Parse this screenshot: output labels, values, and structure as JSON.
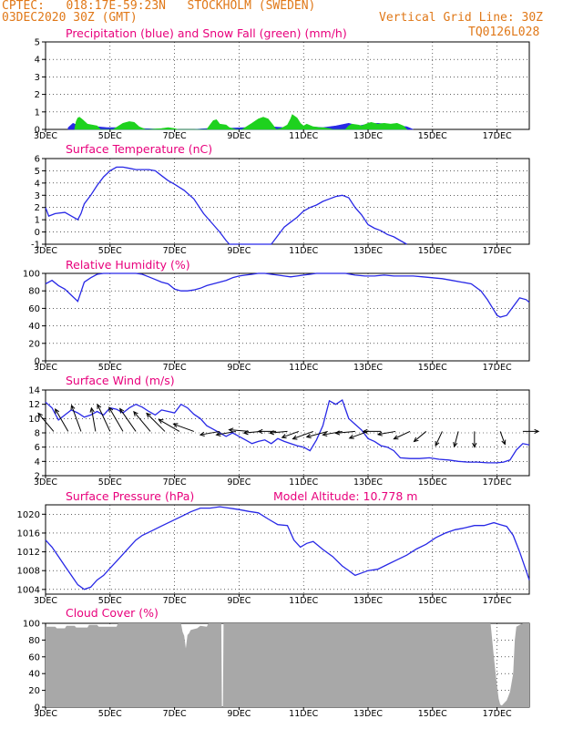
{
  "header": {
    "line1": "CPTEC:   018:17E-59:23N   STOCKHOLM (SWEDEN)",
    "line2": "03DEC2020 30Z (GMT)",
    "grid_note": "Vertical Grid Line: 30Z",
    "code": "TQ0126L028"
  },
  "colors": {
    "header": "#e07818",
    "title": "#e8007c",
    "line": "#2828e6",
    "snow": "#1ed21e",
    "cloud": "#a8a8a8",
    "wind_arrow": "#000000"
  },
  "x_axis": {
    "tick_labels": [
      "3DEC",
      "5DEC",
      "7DEC",
      "9DEC",
      "11DEC",
      "13DEC",
      "15DEC",
      "17DEC"
    ],
    "tick_days": [
      3,
      5,
      7,
      9,
      11,
      13,
      15,
      17
    ],
    "xlim": [
      3,
      18
    ]
  },
  "chart_data": [
    {
      "id": "precip",
      "type": "area",
      "title": "Precipitation (blue) and Snow Fall (green) (mm/h)",
      "yticks": [
        0,
        1,
        2,
        3,
        4,
        5
      ],
      "ylim": [
        0,
        5
      ],
      "series": [
        {
          "kind": "precip",
          "color": "#2828e6",
          "x": [
            3.7,
            3.85,
            4.05,
            4.3,
            4.6,
            4.9,
            5.2,
            5.5,
            5.8,
            6.0,
            6.4,
            6.8,
            7.2,
            7.6,
            8.0,
            8.4,
            8.8,
            9.2,
            9.6,
            10.0,
            10.4,
            10.8,
            11.2,
            11.6,
            12.0,
            12.4,
            12.7,
            13.0,
            13.3,
            13.6,
            13.9,
            14.2,
            14.4
          ],
          "y": [
            0.1,
            0.35,
            0.2,
            0.15,
            0.15,
            0.1,
            0.1,
            0.08,
            0.05,
            0.05,
            0.02,
            0.02,
            0.0,
            0.0,
            0.05,
            0.05,
            0.08,
            0.1,
            0.1,
            0.15,
            0.1,
            0.15,
            0.15,
            0.1,
            0.2,
            0.35,
            0.2,
            0.3,
            0.35,
            0.3,
            0.2,
            0.15,
            0.0
          ]
        },
        {
          "kind": "snow",
          "color": "#1ed21e",
          "x": [
            3.9,
            3.95,
            4.0,
            4.05,
            4.15,
            4.3,
            4.45,
            4.6,
            4.7,
            5.1,
            5.4,
            5.6,
            5.75,
            5.9,
            6.1,
            6.2,
            6.6,
            6.8,
            7.0,
            7.1,
            7.6,
            8.0,
            8.1,
            8.2,
            8.3,
            8.4,
            8.6,
            8.7,
            8.9,
            9.1,
            9.4,
            9.6,
            9.75,
            9.9,
            10.05,
            10.15,
            10.3,
            10.5,
            10.6,
            10.65,
            10.8,
            10.9,
            11.0,
            11.1,
            11.3,
            11.5,
            11.6,
            11.8,
            11.9,
            12.3,
            12.4,
            12.5,
            12.7,
            12.8,
            13.0,
            13.1,
            13.3,
            13.5,
            13.7,
            13.9,
            14.1,
            14.2
          ],
          "y": [
            0,
            0.45,
            0.65,
            0.7,
            0.55,
            0.3,
            0.25,
            0.2,
            0.0,
            0.0,
            0.35,
            0.45,
            0.4,
            0.15,
            0,
            0,
            0.05,
            0.1,
            0.05,
            0,
            0,
            0,
            0.25,
            0.5,
            0.55,
            0.3,
            0.25,
            0.1,
            0,
            0,
            0.35,
            0.6,
            0.7,
            0.6,
            0.25,
            0,
            0.05,
            0.25,
            0.6,
            0.85,
            0.65,
            0.35,
            0.2,
            0.3,
            0.15,
            0.1,
            0.1,
            0.05,
            0,
            0,
            0.2,
            0.3,
            0.25,
            0.2,
            0.35,
            0.4,
            0.3,
            0.35,
            0.3,
            0.35,
            0.2,
            0
          ]
        }
      ]
    },
    {
      "id": "temp",
      "type": "line",
      "title": "Surface Temperature (nC)",
      "yticks": [
        -1,
        0,
        1,
        2,
        3,
        4,
        5,
        6
      ],
      "ylim": [
        -1,
        6
      ],
      "series": [
        {
          "color": "#2828e6",
          "x": [
            3,
            3.1,
            3.3,
            3.6,
            3.8,
            4.0,
            4.1,
            4.2,
            4.4,
            4.6,
            4.8,
            5.0,
            5.2,
            5.4,
            5.6,
            5.8,
            6.0,
            6.2,
            6.4,
            6.6,
            6.8,
            7.0,
            7.3,
            7.6,
            7.9,
            8.2,
            8.4,
            8.6,
            8.7,
            10.0,
            10.2,
            10.4,
            10.6,
            10.8,
            11.0,
            11.2,
            11.4,
            11.6,
            11.8,
            12.0,
            12.2,
            12.4,
            12.6,
            12.8,
            13.0,
            13.2,
            13.4,
            13.6,
            13.8,
            14.0,
            14.2
          ],
          "y": [
            2.0,
            1.3,
            1.5,
            1.6,
            1.3,
            1.0,
            1.5,
            2.3,
            3.0,
            3.8,
            4.5,
            5.0,
            5.3,
            5.3,
            5.2,
            5.1,
            5.1,
            5.1,
            5.0,
            4.6,
            4.2,
            3.9,
            3.4,
            2.7,
            1.5,
            0.6,
            0.0,
            -0.7,
            -1.0,
            -1.0,
            -0.3,
            0.4,
            0.8,
            1.2,
            1.7,
            2.0,
            2.2,
            2.5,
            2.7,
            2.9,
            3.0,
            2.8,
            2.0,
            1.4,
            0.6,
            0.3,
            0.1,
            -0.2,
            -0.4,
            -0.7,
            -1.0
          ]
        }
      ]
    },
    {
      "id": "rh",
      "type": "line",
      "title": "Relative Humidity (%)",
      "yticks": [
        0,
        20,
        40,
        60,
        80,
        100
      ],
      "ylim": [
        0,
        100
      ],
      "series": [
        {
          "color": "#2828e6",
          "x": [
            3,
            3.2,
            3.4,
            3.6,
            3.8,
            4.0,
            4.2,
            4.4,
            4.6,
            4.8,
            5.0,
            5.2,
            5.4,
            5.6,
            5.8,
            6.0,
            6.2,
            6.4,
            6.6,
            6.8,
            7.0,
            7.2,
            7.4,
            7.6,
            7.8,
            8.0,
            8.2,
            8.4,
            8.6,
            8.8,
            9.0,
            9.2,
            9.4,
            9.6,
            9.8,
            10.0,
            10.2,
            10.4,
            10.6,
            10.8,
            11.0,
            11.2,
            11.4,
            11.6,
            11.8,
            12.0,
            12.3,
            12.6,
            12.9,
            13.2,
            13.5,
            13.8,
            14.1,
            14.4,
            14.7,
            15.0,
            15.3,
            15.6,
            15.9,
            16.2,
            16.5,
            16.7,
            16.9,
            17.0,
            17.1,
            17.3,
            17.5,
            17.7,
            17.9,
            18.0
          ],
          "y": [
            88,
            92,
            86,
            82,
            75,
            68,
            90,
            95,
            99,
            100,
            100,
            100,
            100,
            100,
            100,
            99,
            96,
            93,
            90,
            88,
            82,
            80,
            80,
            81,
            83,
            86,
            88,
            90,
            92,
            95,
            97,
            98,
            99,
            100,
            100,
            99,
            98,
            97,
            96,
            97,
            98,
            99,
            100,
            100,
            100,
            100,
            100,
            98,
            97,
            97,
            98,
            97,
            97,
            97,
            96,
            95,
            94,
            92,
            90,
            88,
            80,
            70,
            58,
            52,
            50,
            52,
            62,
            72,
            70,
            67
          ]
        }
      ]
    },
    {
      "id": "wind",
      "type": "line",
      "title": "Surface Wind (m/s)",
      "yticks": [
        2,
        4,
        6,
        8,
        10,
        12,
        14
      ],
      "ylim": [
        2,
        14
      ],
      "series": [
        {
          "color": "#2828e6",
          "x": [
            3,
            3.2,
            3.4,
            3.6,
            3.8,
            4.0,
            4.2,
            4.4,
            4.6,
            4.8,
            5.0,
            5.2,
            5.4,
            5.6,
            5.8,
            6.0,
            6.2,
            6.4,
            6.6,
            6.8,
            7.0,
            7.2,
            7.4,
            7.6,
            7.8,
            8.0,
            8.2,
            8.4,
            8.6,
            8.8,
            9.0,
            9.2,
            9.4,
            9.6,
            9.8,
            10.0,
            10.2,
            10.4,
            10.6,
            10.8,
            11.0,
            11.2,
            11.4,
            11.6,
            11.8,
            12.0,
            12.2,
            12.4,
            12.6,
            12.8,
            13.0,
            13.2,
            13.4,
            13.6,
            13.8,
            14.0,
            14.3,
            14.6,
            14.9,
            15.2,
            15.5,
            15.8,
            16.1,
            16.4,
            16.7,
            17.0,
            17.2,
            17.4,
            17.6,
            17.8,
            18.0
          ],
          "y": [
            12.3,
            11.5,
            9.8,
            10.5,
            11.2,
            10.8,
            10.2,
            10.5,
            11.0,
            10.5,
            11.5,
            11.3,
            10.8,
            11.5,
            12.0,
            11.6,
            11.0,
            10.5,
            11.2,
            11.0,
            10.8,
            12.0,
            11.5,
            10.6,
            10.0,
            9.0,
            8.5,
            8.0,
            7.5,
            8.0,
            7.5,
            7.0,
            6.5,
            6.8,
            7.0,
            6.5,
            7.2,
            6.8,
            6.5,
            6.2,
            6.0,
            5.5,
            7.0,
            9.0,
            12.5,
            12.0,
            12.6,
            10.0,
            9.2,
            8.4,
            7.2,
            6.8,
            6.2,
            6.0,
            5.5,
            4.5,
            4.4,
            4.4,
            4.5,
            4.3,
            4.2,
            4.0,
            3.9,
            3.9,
            3.8,
            3.8,
            3.9,
            4.2,
            5.6,
            6.5,
            6.3
          ]
        }
      ],
      "wind_barbs": [
        {
          "day": 3.25,
          "speed": 10,
          "dir": 320
        },
        {
          "day": 3.7,
          "speed": 11,
          "dir": 330
        },
        {
          "day": 4.1,
          "speed": 12,
          "dir": 340
        },
        {
          "day": 4.55,
          "speed": 10,
          "dir": 350
        },
        {
          "day": 5.0,
          "speed": 13,
          "dir": 335
        },
        {
          "day": 5.4,
          "speed": 12,
          "dir": 330
        },
        {
          "day": 5.8,
          "speed": 12,
          "dir": 325
        },
        {
          "day": 6.25,
          "speed": 11,
          "dir": 320
        },
        {
          "day": 6.7,
          "speed": 11,
          "dir": 315
        },
        {
          "day": 7.15,
          "speed": 10,
          "dir": 300
        },
        {
          "day": 7.6,
          "speed": 9,
          "dir": 290
        },
        {
          "day": 8.4,
          "speed": 8,
          "dir": 260
        },
        {
          "day": 8.9,
          "speed": 8,
          "dir": 260
        },
        {
          "day": 9.3,
          "speed": 8,
          "dir": 275
        },
        {
          "day": 9.7,
          "speed": 7,
          "dir": 265
        },
        {
          "day": 10.15,
          "speed": 7,
          "dir": 270
        },
        {
          "day": 10.5,
          "speed": 7,
          "dir": 265
        },
        {
          "day": 10.85,
          "speed": 7,
          "dir": 250
        },
        {
          "day": 11.3,
          "speed": 9,
          "dir": 250
        },
        {
          "day": 11.75,
          "speed": 9,
          "dir": 255
        },
        {
          "day": 12.2,
          "speed": 8,
          "dir": 260
        },
        {
          "day": 12.6,
          "speed": 8,
          "dir": 265
        },
        {
          "day": 13.0,
          "speed": 8,
          "dir": 250
        },
        {
          "day": 13.4,
          "speed": 7,
          "dir": 270
        },
        {
          "day": 13.85,
          "speed": 7,
          "dir": 260
        },
        {
          "day": 14.3,
          "speed": 7,
          "dir": 245
        },
        {
          "day": 14.8,
          "speed": 6,
          "dir": 230
        },
        {
          "day": 15.3,
          "speed": 6,
          "dir": 205
        },
        {
          "day": 15.8,
          "speed": 6,
          "dir": 195
        },
        {
          "day": 16.3,
          "speed": 6,
          "dir": 180
        },
        {
          "day": 17.1,
          "speed": 5,
          "dir": 160
        },
        {
          "day": 17.8,
          "speed": 6,
          "dir": 90
        }
      ]
    },
    {
      "id": "pres",
      "type": "line",
      "title": "Surface Pressure (hPa)",
      "subtitle": "Model Altitude: 10.778 m",
      "yticks": [
        1004,
        1008,
        1012,
        1016,
        1020
      ],
      "ylim": [
        1003,
        1022
      ],
      "series": [
        {
          "color": "#2828e6",
          "x": [
            3,
            3.2,
            3.4,
            3.6,
            3.8,
            4.0,
            4.2,
            4.4,
            4.6,
            4.8,
            5.0,
            5.2,
            5.4,
            5.6,
            5.8,
            6.0,
            6.3,
            6.6,
            6.9,
            7.2,
            7.5,
            7.8,
            8.1,
            8.4,
            8.7,
            9.0,
            9.3,
            9.6,
            9.9,
            10.2,
            10.5,
            10.7,
            10.9,
            11.1,
            11.3,
            11.6,
            11.9,
            12.2,
            12.4,
            12.6,
            12.8,
            13.0,
            13.3,
            13.6,
            13.9,
            14.2,
            14.5,
            14.8,
            15.1,
            15.4,
            15.7,
            16.0,
            16.3,
            16.6,
            16.9,
            17.1,
            17.3,
            17.5,
            17.7,
            17.9,
            18.0
          ],
          "y": [
            1014.5,
            1013,
            1011,
            1009,
            1007,
            1005,
            1004,
            1004.5,
            1006,
            1007,
            1008.5,
            1010,
            1011.5,
            1013,
            1014.5,
            1015.5,
            1016.5,
            1017.5,
            1018.5,
            1019.5,
            1020.5,
            1021.3,
            1021.3,
            1021.6,
            1021.3,
            1021,
            1020.6,
            1020.3,
            1019,
            1017.8,
            1017.6,
            1014.5,
            1013,
            1013.8,
            1014.2,
            1012.5,
            1011,
            1009,
            1008,
            1007,
            1007.5,
            1008,
            1008.3,
            1009.3,
            1010.3,
            1011.3,
            1012.6,
            1013.6,
            1015,
            1016,
            1016.7,
            1017.1,
            1017.6,
            1017.6,
            1018.2,
            1017.8,
            1017.4,
            1015.5,
            1012,
            1008,
            1006
          ]
        }
      ]
    },
    {
      "id": "cloud",
      "type": "area",
      "title": "Cloud Cover (%)",
      "yticks": [
        0,
        20,
        40,
        60,
        80,
        100
      ],
      "ylim": [
        0,
        100
      ],
      "series": [
        {
          "color": "#a8a8a8",
          "x": [
            3,
            3.3,
            3.35,
            3.6,
            3.65,
            3.9,
            3.95,
            4.3,
            4.35,
            4.6,
            4.65,
            5.2,
            5.25,
            7.2,
            7.25,
            7.3,
            7.35,
            7.4,
            7.45,
            7.5,
            7.6,
            7.7,
            7.8,
            8.0,
            8.05,
            8.2,
            8.3,
            8.4,
            8.45,
            8.47,
            8.5,
            8.52,
            9.0,
            16.8,
            16.9,
            17.0,
            17.05,
            17.1,
            17.15,
            17.2,
            17.3,
            17.4,
            17.5,
            17.55,
            17.6,
            17.7,
            17.8,
            18.0
          ],
          "y": [
            96,
            96,
            94,
            94,
            97,
            97,
            95,
            95,
            98,
            98,
            96,
            96,
            100,
            100,
            90,
            85,
            70,
            86,
            88,
            92,
            93,
            94,
            97,
            96,
            100,
            100,
            100,
            100,
            100,
            0,
            0,
            100,
            100,
            100,
            60,
            25,
            10,
            3,
            2,
            4,
            8,
            18,
            40,
            80,
            96,
            98,
            100,
            100
          ]
        }
      ]
    }
  ]
}
